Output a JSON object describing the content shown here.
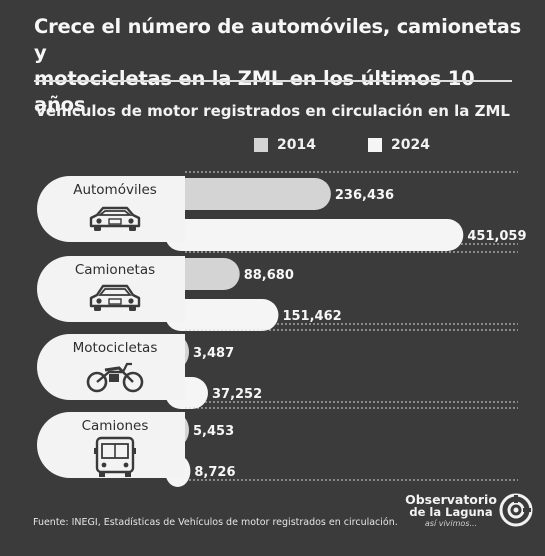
{
  "header": {
    "title_line1": "Crece el número de automóviles, camionetas y",
    "title_line2": "motocicletas en la ZML en los últimos 10 años"
  },
  "colors": {
    "background": "#3b3b3b",
    "pill": "#f3f3f3",
    "bar_2014": "#d4d4d4",
    "bar_2024": "#f5f5f5",
    "dotted_line": "#d8d8d8"
  },
  "chart_data": {
    "type": "bar",
    "orientation": "horizontal",
    "title": "Vehículos de motor registrados en circulación en la ZML",
    "categories": [
      "Automóviles",
      "Camionetas",
      "Motocicletas",
      "Camiones"
    ],
    "category_icons": [
      "car-icon",
      "suv-icon",
      "motorcycle-icon",
      "bus-icon"
    ],
    "series": [
      {
        "name": "2014",
        "values": [
          236436,
          88680,
          3487,
          5453
        ],
        "labels": [
          "236,436",
          "88,680",
          "3,487",
          "5,453"
        ]
      },
      {
        "name": "2024",
        "values": [
          451059,
          151462,
          37252,
          8726
        ],
        "labels": [
          "451,059",
          "151,462",
          "37,252",
          "8,726"
        ]
      }
    ],
    "legend_position": "top",
    "grid": false
  },
  "footer": {
    "source": "Fuente: INEGI, Estadísticas de Vehículos de motor registrados en circulación."
  },
  "brand": {
    "line1": "Observatorio",
    "line2": "de la Laguna",
    "tagline": "así vivimos..."
  }
}
